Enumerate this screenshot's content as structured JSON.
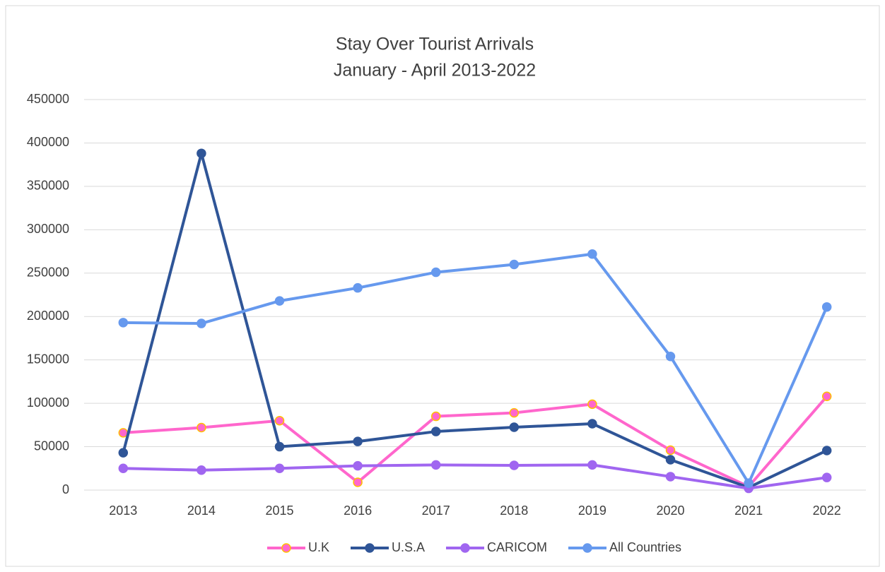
{
  "chart_data": {
    "type": "line",
    "title": "Stay Over Tourist Arrivals",
    "subtitle": "January - April 2013-2022",
    "categories": [
      "2013",
      "2014",
      "2015",
      "2016",
      "2017",
      "2018",
      "2019",
      "2020",
      "2021",
      "2022"
    ],
    "series": [
      {
        "name": "U.K",
        "color": "#ff66cc",
        "marker_edge_color": "#ffc000",
        "values": [
          66000,
          72000,
          80000,
          9000,
          85000,
          89000,
          99000,
          46000,
          4000,
          108000
        ]
      },
      {
        "name": "U.S.A",
        "color": "#2f5597",
        "values": [
          43000,
          388000,
          50000,
          56000,
          67500,
          72400,
          76500,
          35000,
          3000,
          45600
        ]
      },
      {
        "name": "CARICOM",
        "color": "#a066f0",
        "values": [
          25000,
          23000,
          25000,
          28000,
          29000,
          28500,
          29000,
          15500,
          2000,
          14500
        ]
      },
      {
        "name": "All Countries",
        "color": "#6699ee",
        "values": [
          193000,
          192000,
          218000,
          233000,
          251000,
          260000,
          272000,
          154000,
          8000,
          211000
        ]
      }
    ],
    "ylim": [
      0,
      450000
    ],
    "yticks": [
      0,
      50000,
      100000,
      150000,
      200000,
      250000,
      300000,
      350000,
      400000,
      450000
    ],
    "grid": true,
    "legend": "bottom"
  }
}
